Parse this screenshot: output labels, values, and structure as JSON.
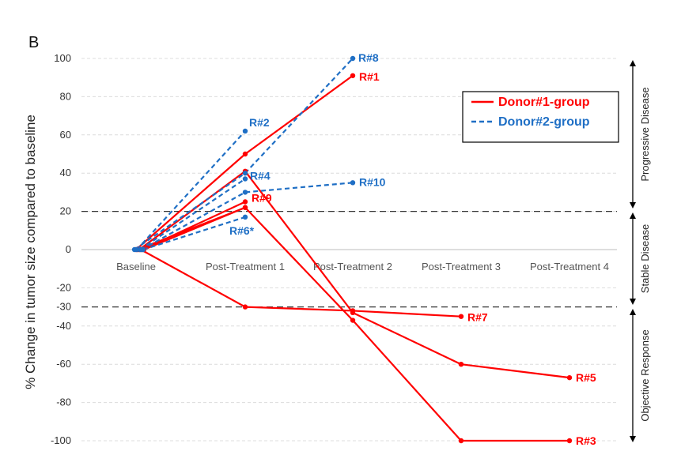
{
  "chart_data": {
    "type": "line",
    "panel_label": "B",
    "ylabel": "% Change in tumor size compared to baseline",
    "ylim": [
      -100,
      100
    ],
    "yticks": [
      {
        "value": 100,
        "label": "100"
      },
      {
        "value": 80,
        "label": "80"
      },
      {
        "value": 60,
        "label": "60"
      },
      {
        "value": 40,
        "label": "40"
      },
      {
        "value": 20,
        "label": "20"
      },
      {
        "value": 0,
        "label": "0"
      },
      {
        "value": -20,
        "label": "-20"
      },
      {
        "value": -30,
        "label": "-30"
      },
      {
        "value": -40,
        "label": "-40"
      },
      {
        "value": -60,
        "label": "-60"
      },
      {
        "value": -80,
        "label": "-80"
      },
      {
        "value": -100,
        "label": "-100"
      }
    ],
    "categories": [
      "Baseline",
      "Post-Treatment 1",
      "Post-Treatment 2",
      "Post-Treatment 3",
      "Post-Treatment 4"
    ],
    "thresholds": [
      20,
      -30
    ],
    "grid": true,
    "legend": {
      "position": "top-right",
      "entries": [
        {
          "name": "Donor#1-group",
          "color": "#ff0000",
          "dash": "solid"
        },
        {
          "name": "Donor#2-group",
          "color": "#1f6fc5",
          "dash": "dashed"
        }
      ]
    },
    "zones": [
      {
        "label": "Progressive Disease",
        "from": 20,
        "to": 100
      },
      {
        "label": "Stable Disease",
        "from": -30,
        "to": 20
      },
      {
        "label": "Objective Response",
        "from": -100,
        "to": -30
      }
    ],
    "series": [
      {
        "label": "R#1",
        "group": "Donor#1-group",
        "values": [
          0,
          50,
          91,
          null,
          null
        ]
      },
      {
        "label": "R#3",
        "group": "Donor#1-group",
        "values": [
          0,
          22,
          -37,
          -100,
          -100
        ]
      },
      {
        "label": "R#5",
        "group": "Donor#1-group",
        "values": [
          0,
          41,
          -33,
          -60,
          -67
        ]
      },
      {
        "label": "R#7",
        "group": "Donor#1-group",
        "values": [
          0,
          -30,
          -32,
          -35,
          null
        ]
      },
      {
        "label": "R#9",
        "group": "Donor#1-group",
        "values": [
          0,
          25,
          null,
          null,
          null
        ]
      },
      {
        "label": "",
        "group": "Donor#1-group",
        "values": [
          0,
          22,
          null,
          null,
          null
        ]
      },
      {
        "label": "R#8",
        "group": "Donor#2-group",
        "values": [
          0,
          40,
          100,
          null,
          null
        ]
      },
      {
        "label": "R#2",
        "group": "Donor#2-group",
        "values": [
          0,
          62,
          null,
          null,
          null
        ]
      },
      {
        "label": "R#4",
        "group": "Donor#2-group",
        "values": [
          0,
          37,
          null,
          null,
          null
        ]
      },
      {
        "label": "R#10",
        "group": "Donor#2-group",
        "values": [
          0,
          30,
          35,
          null,
          null
        ]
      },
      {
        "label": "R#6*",
        "group": "Donor#2-group",
        "values": [
          0,
          17,
          null,
          null,
          null
        ]
      }
    ]
  }
}
